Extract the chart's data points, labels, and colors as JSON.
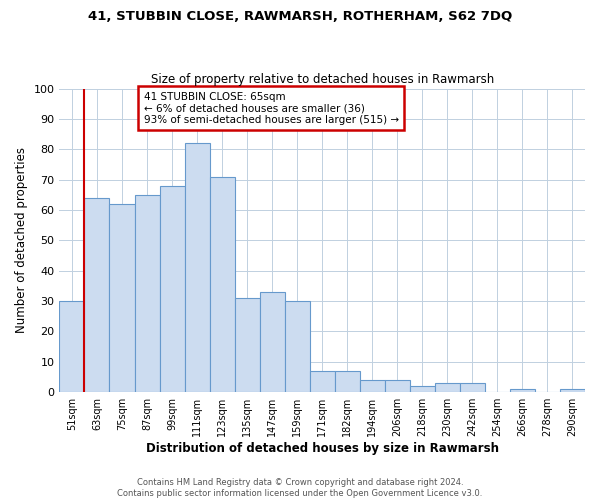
{
  "title": "41, STUBBIN CLOSE, RAWMARSH, ROTHERHAM, S62 7DQ",
  "subtitle": "Size of property relative to detached houses in Rawmarsh",
  "xlabel": "Distribution of detached houses by size in Rawmarsh",
  "ylabel": "Number of detached properties",
  "bin_labels": [
    "51sqm",
    "63sqm",
    "75sqm",
    "87sqm",
    "99sqm",
    "111sqm",
    "123sqm",
    "135sqm",
    "147sqm",
    "159sqm",
    "171sqm",
    "182sqm",
    "194sqm",
    "206sqm",
    "218sqm",
    "230sqm",
    "242sqm",
    "254sqm",
    "266sqm",
    "278sqm",
    "290sqm"
  ],
  "bar_values": [
    30,
    64,
    62,
    65,
    68,
    82,
    71,
    31,
    33,
    30,
    7,
    7,
    4,
    4,
    2,
    3,
    3,
    0,
    1,
    0,
    1
  ],
  "bar_color": "#ccdcf0",
  "bar_edge_color": "#6699cc",
  "ylim": [
    0,
    100
  ],
  "yticks": [
    0,
    10,
    20,
    30,
    40,
    50,
    60,
    70,
    80,
    90,
    100
  ],
  "vline_color": "#cc0000",
  "annotation_title": "41 STUBBIN CLOSE: 65sqm",
  "annotation_line1": "← 6% of detached houses are smaller (36)",
  "annotation_line2": "93% of semi-detached houses are larger (515) →",
  "annotation_box_color": "#cc0000",
  "footer_line1": "Contains HM Land Registry data © Crown copyright and database right 2024.",
  "footer_line2": "Contains public sector information licensed under the Open Government Licence v3.0.",
  "background_color": "#ffffff",
  "grid_color": "#c0d0e0"
}
